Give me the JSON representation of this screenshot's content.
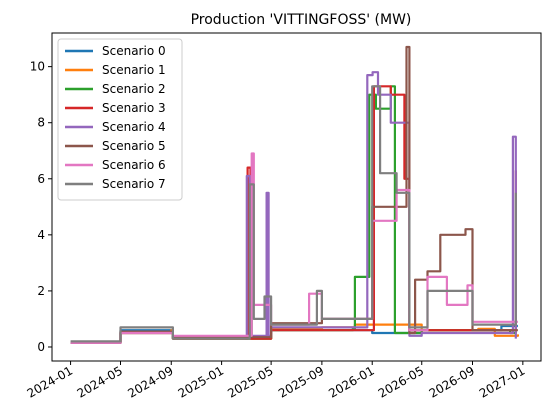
{
  "chart_data": {
    "type": "line",
    "title": "Production 'VITTINGFOSS' (MW)",
    "xlabel": "",
    "ylabel": "",
    "x_ticks": [
      "2024-01",
      "2024-05",
      "2024-09",
      "2025-01",
      "2025-05",
      "2025-09",
      "2026-01",
      "2026-05",
      "2026-09",
      "2027-01"
    ],
    "xlim": [
      "2023-11-17",
      "2027-02-14"
    ],
    "ylim": [
      -0.5,
      11.2
    ],
    "y_ticks": [
      0,
      2,
      4,
      6,
      8,
      10
    ],
    "grid": false,
    "legend_position": "upper-left",
    "series": [
      {
        "name": "Scenario 0",
        "color": "#1f77b4",
        "points": [
          [
            "2024-01-01",
            0.15
          ],
          [
            "2024-04-25",
            0.15
          ],
          [
            "2024-05-01",
            0.6
          ],
          [
            "2024-09-01",
            0.6
          ],
          [
            "2024-09-05",
            0.35
          ],
          [
            "2025-03-01",
            0.3
          ],
          [
            "2025-04-10",
            0.3
          ],
          [
            "2025-05-01",
            0.6
          ],
          [
            "2025-12-01",
            0.6
          ],
          [
            "2026-01-01",
            0.5
          ],
          [
            "2026-05-01",
            0.6
          ],
          [
            "2026-11-01",
            0.6
          ],
          [
            "2026-11-10",
            0.75
          ],
          [
            "2026-12-20",
            0.75
          ]
        ]
      },
      {
        "name": "Scenario 1",
        "color": "#ff7f0e",
        "points": [
          [
            "2024-01-01",
            0.15
          ],
          [
            "2024-04-25",
            0.15
          ],
          [
            "2024-05-01",
            0.55
          ],
          [
            "2024-09-01",
            0.6
          ],
          [
            "2024-09-05",
            0.3
          ],
          [
            "2025-03-01",
            0.3
          ],
          [
            "2025-05-01",
            0.65
          ],
          [
            "2025-09-01",
            0.7
          ],
          [
            "2025-11-01",
            0.7
          ],
          [
            "2025-11-20",
            0.8
          ],
          [
            "2026-05-01",
            0.6
          ],
          [
            "2026-09-15",
            0.65
          ],
          [
            "2026-10-25",
            0.4
          ],
          [
            "2026-12-20",
            0.45
          ]
        ]
      },
      {
        "name": "Scenario 2",
        "color": "#2ca02c",
        "points": [
          [
            "2024-01-01",
            0.15
          ],
          [
            "2024-05-01",
            0.5
          ],
          [
            "2024-09-05",
            0.3
          ],
          [
            "2025-03-01",
            0.3
          ],
          [
            "2025-03-10",
            6.0
          ],
          [
            "2025-03-15",
            0.3
          ],
          [
            "2025-05-01",
            0.6
          ],
          [
            "2025-11-15",
            0.65
          ],
          [
            "2025-11-20",
            2.5
          ],
          [
            "2025-12-25",
            9.0
          ],
          [
            "2026-01-10",
            8.5
          ],
          [
            "2026-02-15",
            9.3
          ],
          [
            "2026-02-25",
            0.5
          ],
          [
            "2026-05-01",
            0.6
          ],
          [
            "2026-09-01",
            0.6
          ],
          [
            "2026-12-01",
            0.5
          ],
          [
            "2026-12-15",
            5.5
          ]
        ]
      },
      {
        "name": "Scenario 3",
        "color": "#d62728",
        "points": [
          [
            "2024-01-01",
            0.15
          ],
          [
            "2024-05-01",
            0.5
          ],
          [
            "2024-09-05",
            0.3
          ],
          [
            "2025-03-01",
            0.3
          ],
          [
            "2025-03-05",
            6.4
          ],
          [
            "2025-03-12",
            0.3
          ],
          [
            "2025-05-01",
            0.6
          ],
          [
            "2025-12-01",
            0.6
          ],
          [
            "2026-01-05",
            9.3
          ],
          [
            "2026-02-15",
            9.0
          ],
          [
            "2026-03-20",
            6.0
          ],
          [
            "2026-04-01",
            0.6
          ],
          [
            "2026-05-01",
            0.6
          ],
          [
            "2026-09-01",
            0.6
          ],
          [
            "2026-12-15",
            6.3
          ]
        ]
      },
      {
        "name": "Scenario 4",
        "color": "#9467bd",
        "points": [
          [
            "2024-01-01",
            0.15
          ],
          [
            "2024-05-01",
            0.55
          ],
          [
            "2024-09-05",
            0.35
          ],
          [
            "2025-03-01",
            0.35
          ],
          [
            "2025-03-03",
            6.1
          ],
          [
            "2025-03-10",
            0.4
          ],
          [
            "2025-04-20",
            5.5
          ],
          [
            "2025-04-25",
            0.4
          ],
          [
            "2025-05-01",
            0.7
          ],
          [
            "2025-12-01",
            0.7
          ],
          [
            "2025-12-20",
            9.7
          ],
          [
            "2026-01-02",
            9.8
          ],
          [
            "2026-01-15",
            9.0
          ],
          [
            "2026-02-15",
            8.0
          ],
          [
            "2026-04-01",
            0.4
          ],
          [
            "2026-05-01",
            0.5
          ],
          [
            "2026-11-15",
            0.5
          ],
          [
            "2026-12-08",
            7.5
          ],
          [
            "2026-12-15",
            0.3
          ]
        ]
      },
      {
        "name": "Scenario 5",
        "color": "#8c564b",
        "points": [
          [
            "2024-01-01",
            0.15
          ],
          [
            "2024-05-01",
            0.55
          ],
          [
            "2024-09-05",
            0.35
          ],
          [
            "2025-03-01",
            0.35
          ],
          [
            "2025-05-01",
            0.85
          ],
          [
            "2025-09-01",
            1.0
          ],
          [
            "2025-12-01",
            1.0
          ],
          [
            "2026-01-01",
            5.0
          ],
          [
            "2026-03-25",
            10.7
          ],
          [
            "2026-04-01",
            0.5
          ],
          [
            "2026-04-15",
            2.4
          ],
          [
            "2026-05-15",
            2.7
          ],
          [
            "2026-06-15",
            4.0
          ],
          [
            "2026-08-15",
            4.2
          ],
          [
            "2026-09-01",
            0.6
          ],
          [
            "2026-12-20",
            0.6
          ]
        ]
      },
      {
        "name": "Scenario 6",
        "color": "#e377c2",
        "points": [
          [
            "2024-01-01",
            0.15
          ],
          [
            "2024-05-01",
            0.5
          ],
          [
            "2024-09-05",
            0.4
          ],
          [
            "2025-03-01",
            0.4
          ],
          [
            "2025-03-15",
            6.9
          ],
          [
            "2025-03-20",
            1.5
          ],
          [
            "2025-05-01",
            0.8
          ],
          [
            "2025-08-01",
            1.9
          ],
          [
            "2025-09-01",
            1.0
          ],
          [
            "2025-12-01",
            1.0
          ],
          [
            "2026-01-01",
            4.5
          ],
          [
            "2026-03-01",
            5.6
          ],
          [
            "2026-04-01",
            0.6
          ],
          [
            "2026-05-15",
            2.5
          ],
          [
            "2026-07-01",
            1.5
          ],
          [
            "2026-08-20",
            2.2
          ],
          [
            "2026-09-01",
            0.9
          ],
          [
            "2026-12-20",
            0.9
          ]
        ]
      },
      {
        "name": "Scenario 7",
        "color": "#7f7f7f",
        "points": [
          [
            "2024-01-01",
            0.2
          ],
          [
            "2024-05-01",
            0.7
          ],
          [
            "2024-09-05",
            0.3
          ],
          [
            "2025-03-01",
            0.3
          ],
          [
            "2025-03-10",
            5.8
          ],
          [
            "2025-03-20",
            1.0
          ],
          [
            "2025-04-15",
            1.8
          ],
          [
            "2025-05-01",
            0.8
          ],
          [
            "2025-08-20",
            2.0
          ],
          [
            "2025-09-01",
            1.0
          ],
          [
            "2025-12-01",
            1.0
          ],
          [
            "2026-01-01",
            9.3
          ],
          [
            "2026-01-20",
            6.2
          ],
          [
            "2026-03-01",
            5.5
          ],
          [
            "2026-04-01",
            0.7
          ],
          [
            "2026-05-15",
            2.0
          ],
          [
            "2026-09-01",
            0.8
          ],
          [
            "2026-12-10",
            0.8
          ],
          [
            "2026-12-15",
            5.5
          ]
        ]
      }
    ]
  }
}
